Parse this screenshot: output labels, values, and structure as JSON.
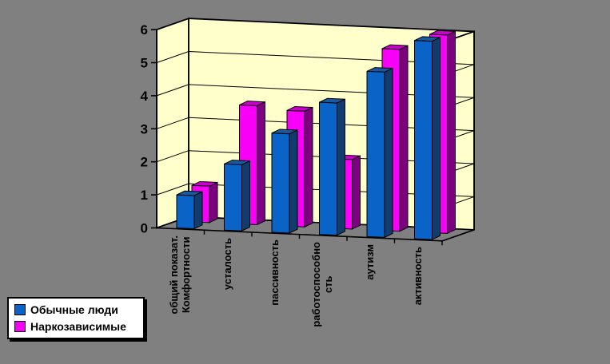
{
  "background_color": "#808080",
  "chart_data": {
    "type": "bar",
    "subtype": "3d-column",
    "title": "",
    "categories": [
      "общий показат. Комфортности",
      "усталость",
      "пассивность",
      "работоспособность",
      "аутизм",
      "активность"
    ],
    "category_label_lines": [
      [
        "общий показат.",
        "Комфортности"
      ],
      [
        "усталость"
      ],
      [
        "пассивность"
      ],
      [
        "работоспособно",
        "сть"
      ],
      [
        "аутизм"
      ],
      [
        "активность"
      ]
    ],
    "series": [
      {
        "name": "Обычные люди",
        "color": "#0a64c8",
        "color_side": "#123c6e",
        "color_top": "#1859a0",
        "values": [
          1,
          2,
          3,
          4,
          5,
          6
        ]
      },
      {
        "name": "Наркозависимые",
        "color": "#f800f8",
        "color_side": "#7d0080",
        "color_top": "#cc00cc",
        "values": [
          1.1,
          3.6,
          3.5,
          2.1,
          5.5,
          6
        ]
      }
    ],
    "ylim": [
      0,
      6
    ],
    "yticks": [
      "0",
      "1",
      "2",
      "3",
      "4",
      "5",
      "6"
    ],
    "grid": true,
    "wall_color": "#ffffcc",
    "floor_color": "#808080",
    "axis_color": "#000000",
    "legend_position": "bottom-left"
  }
}
